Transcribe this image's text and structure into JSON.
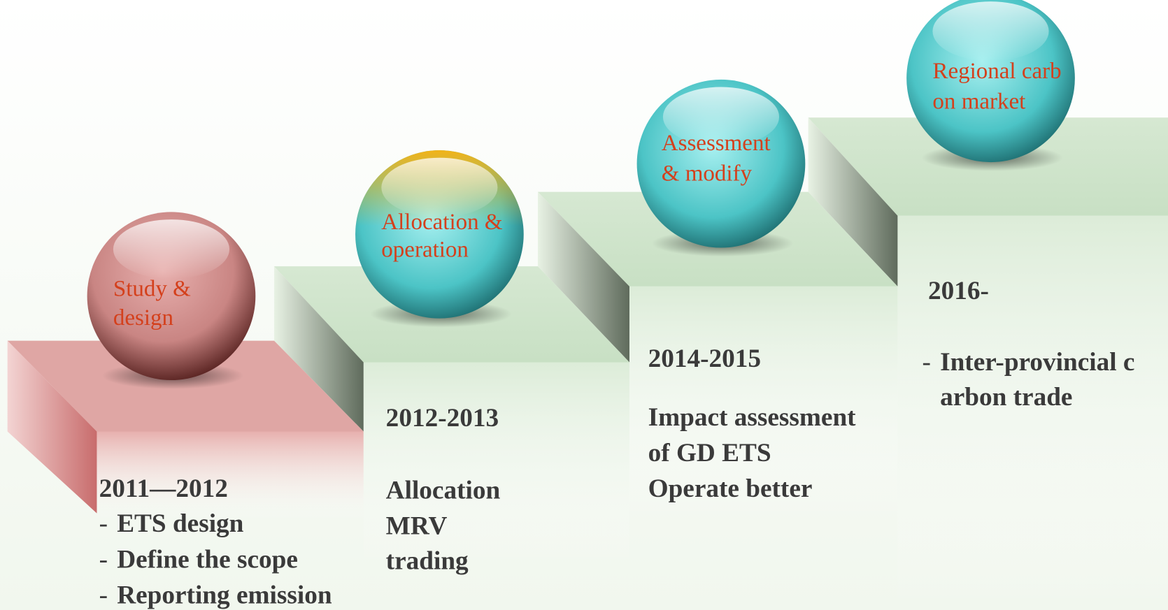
{
  "steps": [
    {
      "label": [
        "Study &",
        "design"
      ],
      "year": "2011—2012",
      "lines": [
        {
          "marker": "-",
          "text": "ETS design"
        },
        {
          "marker": "-",
          "text": "Define the scope"
        },
        {
          "marker": "-",
          "text": "Reporting emission"
        }
      ]
    },
    {
      "label": [
        "Allocation &",
        "operation"
      ],
      "year": "2012-2013",
      "lines": [
        "Allocation",
        "MRV",
        "trading"
      ]
    },
    {
      "label": [
        "Assessment",
        "& modify"
      ],
      "year": "2014-2015",
      "lines": [
        "Impact assessment",
        "  of GD ETS",
        "Operate better"
      ]
    },
    {
      "label": [
        "Regional carb",
        "on market"
      ],
      "year": "2016-",
      "lines": [
        {
          "marker": "-",
          "text": "Inter-provincial c"
        },
        {
          "marker": "",
          "text": "arbon trade"
        }
      ]
    }
  ]
}
